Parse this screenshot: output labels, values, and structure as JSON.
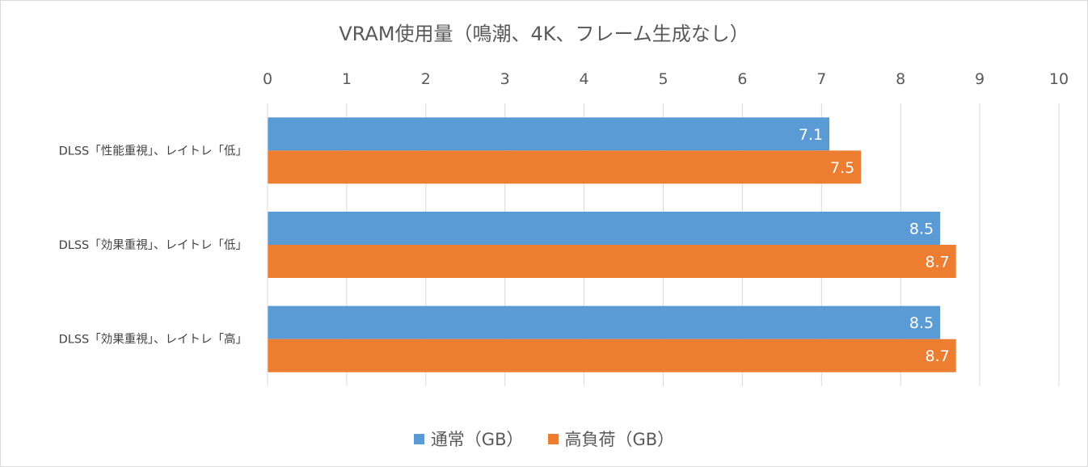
{
  "colors": {
    "series1": "#5b9bd5",
    "series2": "#ed7d31",
    "grid": "#d9d9d9",
    "text": "#595959"
  },
  "chart_data": {
    "type": "bar",
    "orientation": "horizontal",
    "title": "VRAM使用量（鳴潮、4K、フレーム生成なし）",
    "categories": [
      "DLSS「性能重視」、レイトレ「低」",
      "DLSS「効果重視」、レイトレ「低」",
      "DLSS「効果重視」、レイトレ「高」"
    ],
    "series": [
      {
        "name": "通常（GB）",
        "values": [
          7.1,
          8.5,
          8.5
        ],
        "labels": [
          "7.1",
          "8.5",
          "8.5"
        ]
      },
      {
        "name": "高負荷（GB）",
        "values": [
          7.5,
          8.7,
          8.7
        ],
        "labels": [
          "7.5",
          "8.7",
          "8.7"
        ]
      }
    ],
    "xlim": [
      0,
      10
    ],
    "ticks": [
      "0",
      "1",
      "2",
      "3",
      "4",
      "5",
      "6",
      "7",
      "8",
      "9",
      "10"
    ],
    "grid": true,
    "axis_position": "top",
    "legend_position": "bottom"
  }
}
